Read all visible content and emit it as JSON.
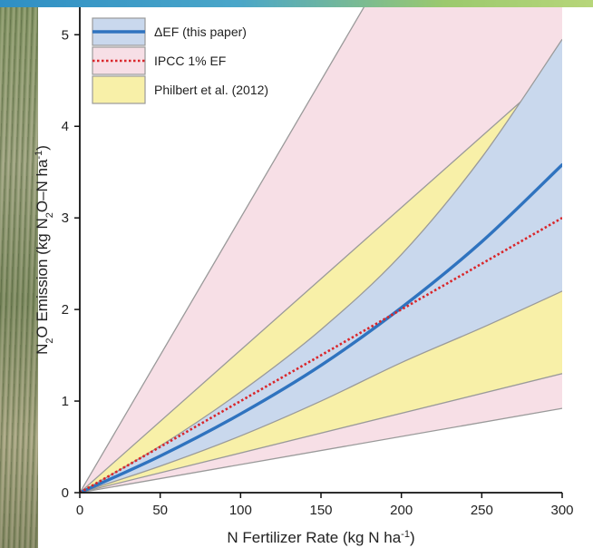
{
  "chart_data": {
    "type": "area",
    "xlabel": "N Fertilizer Rate (kg N ha",
    "xlabel_sup": "-1",
    "xlabel_end": ")",
    "ylabel_prefix": "N",
    "ylabel_sub1": "2",
    "ylabel_mid": "O Emission (kg N",
    "ylabel_sub2": "2",
    "ylabel_mid2": "O–N ha",
    "ylabel_sup": "-1",
    "ylabel_end": ")",
    "xlim": [
      0,
      300
    ],
    "ylim": [
      0,
      5.3
    ],
    "xticks": [
      0,
      50,
      100,
      150,
      200,
      250,
      300
    ],
    "yticks": [
      0,
      1,
      2,
      3,
      4,
      5
    ],
    "legend_position": "top-left",
    "series": [
      {
        "name": "IPCC 1% EF",
        "kind": "band",
        "color": "#f7dfe6",
        "x": [
          0,
          300
        ],
        "lower": [
          0,
          0.92
        ],
        "upper": [
          0,
          9.0
        ]
      },
      {
        "name": "Philbert et al. (2012)",
        "kind": "band",
        "color": "#f8f0a8",
        "x": [
          0,
          300
        ],
        "lower": [
          0,
          1.3
        ],
        "upper": [
          0,
          4.67
        ]
      },
      {
        "name": "ΔEF (this paper)",
        "kind": "band",
        "color": "#c9d8ed",
        "x": [
          0,
          50,
          100,
          150,
          200,
          250,
          300
        ],
        "lower": [
          0,
          0.29,
          0.62,
          1.0,
          1.42,
          1.8,
          2.2
        ],
        "upper": [
          0,
          0.51,
          1.1,
          1.78,
          2.6,
          3.66,
          4.95
        ]
      },
      {
        "name": "ΔEF (this paper)",
        "kind": "line",
        "color": "#2f73bf",
        "x": [
          0,
          50,
          100,
          150,
          200,
          250,
          300
        ],
        "y": [
          0,
          0.4,
          0.86,
          1.39,
          2.02,
          2.74,
          3.58
        ]
      },
      {
        "name": "IPCC 1% EF",
        "kind": "dashed-line",
        "color": "#d9262a",
        "x": [
          0,
          300
        ],
        "y": [
          0,
          3.0
        ]
      }
    ],
    "legend": [
      {
        "label": "ΔEF (this paper)",
        "swatch_fill": "#c9d8ed",
        "line_color": "#2f73bf",
        "line_style": "solid"
      },
      {
        "label": "IPCC 1% EF",
        "swatch_fill": "#f7dfe6",
        "line_color": "#d9262a",
        "line_style": "dotted"
      },
      {
        "label": "Philbert et al. (2012)",
        "swatch_fill": "#f8f0a8",
        "line_color": "",
        "line_style": "none"
      }
    ]
  }
}
